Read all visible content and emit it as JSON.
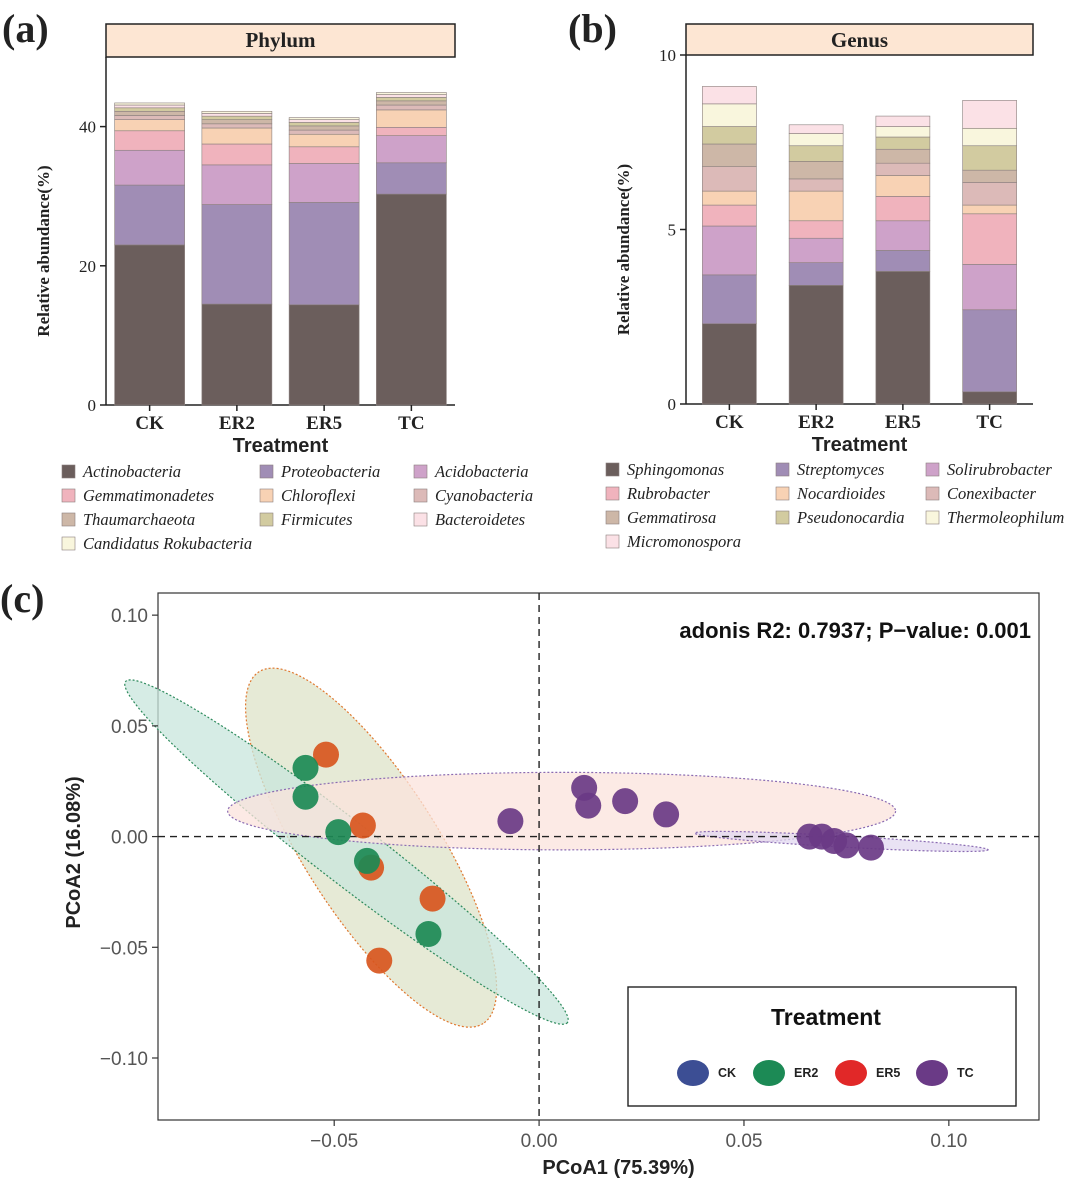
{
  "figure": {
    "panel_labels": [
      "(a)",
      "(b)",
      "(c)"
    ]
  },
  "chart_data": [
    {
      "type": "bar",
      "stacked": true,
      "panel": "(a)",
      "strip_title": "Phylum",
      "xlabel": "Treatment",
      "ylabel": "Relative abundance(%)",
      "categories": [
        "CK",
        "ER2",
        "ER5",
        "TC"
      ],
      "ylim": [
        0,
        50
      ],
      "yticks": [
        0,
        20,
        40
      ],
      "series": [
        {
          "name": "Actinobacteria",
          "color": "#6b5e5c",
          "values": [
            23.0,
            14.5,
            14.4,
            30.3
          ]
        },
        {
          "name": "Proteobacteria",
          "color": "#a08db5",
          "values": [
            8.6,
            14.3,
            14.7,
            4.5
          ]
        },
        {
          "name": "Acidobacteria",
          "color": "#cea2c9",
          "values": [
            5.0,
            5.7,
            5.6,
            3.9
          ]
        },
        {
          "name": "Gemmatimonadetes",
          "color": "#f0b3bd",
          "values": [
            2.8,
            3.0,
            2.4,
            1.2
          ]
        },
        {
          "name": "Chloroflexi",
          "color": "#f8d2b4",
          "values": [
            1.6,
            2.3,
            1.8,
            2.5
          ]
        },
        {
          "name": "Cyanobacteria",
          "color": "#dcbab8",
          "values": [
            0.6,
            0.6,
            0.6,
            0.7
          ]
        },
        {
          "name": "Thaumarchaeota",
          "color": "#cdb7a7",
          "values": [
            0.6,
            0.6,
            0.6,
            0.6
          ]
        },
        {
          "name": "Firmicutes",
          "color": "#d2cba0",
          "values": [
            0.5,
            0.5,
            0.5,
            0.5
          ]
        },
        {
          "name": "Bacteroidetes",
          "color": "#fbe1e6",
          "values": [
            0.4,
            0.4,
            0.4,
            0.4
          ]
        },
        {
          "name": "Candidatus Rokubacteria",
          "color": "#f9f6dd",
          "values": [
            0.3,
            0.3,
            0.3,
            0.3
          ]
        }
      ],
      "legend_order": [
        "Actinobacteria",
        "Proteobacteria",
        "Acidobacteria",
        "Gemmatimonadetes",
        "Chloroflexi",
        "Cyanobacteria",
        "Thaumarchaeota",
        "Firmicutes",
        "Bacteroidetes",
        "Candidatus Rokubacteria"
      ],
      "legend_position": "bottom"
    },
    {
      "type": "bar",
      "stacked": true,
      "panel": "(b)",
      "strip_title": "Genus",
      "xlabel": "Treatment",
      "ylabel": "Relative abundance(%)",
      "categories": [
        "CK",
        "ER2",
        "ER5",
        "TC"
      ],
      "ylim": [
        0,
        10
      ],
      "yticks": [
        0,
        5,
        10
      ],
      "series": [
        {
          "name": "Sphingomonas",
          "color": "#6b5e5c",
          "values": [
            2.3,
            3.4,
            3.8,
            0.35
          ]
        },
        {
          "name": "Streptomyces",
          "color": "#a08db5",
          "values": [
            1.4,
            0.65,
            0.6,
            2.35
          ]
        },
        {
          "name": "Solirubrobacter",
          "color": "#cea2c9",
          "values": [
            1.4,
            0.7,
            0.85,
            1.3
          ]
        },
        {
          "name": "Rubrobacter",
          "color": "#f0b3bd",
          "values": [
            0.6,
            0.5,
            0.7,
            1.45
          ]
        },
        {
          "name": "Nocardioides",
          "color": "#f8d2b4",
          "values": [
            0.4,
            0.85,
            0.6,
            0.25
          ]
        },
        {
          "name": "Conexibacter",
          "color": "#dcbab8",
          "values": [
            0.7,
            0.35,
            0.35,
            0.65
          ]
        },
        {
          "name": "Gemmatirosa",
          "color": "#cdb7a7",
          "values": [
            0.65,
            0.5,
            0.4,
            0.35
          ]
        },
        {
          "name": "Pseudonocardia",
          "color": "#d2cba0",
          "values": [
            0.5,
            0.45,
            0.35,
            0.7
          ]
        },
        {
          "name": "Thermoleophilum",
          "color": "#f9f6dd",
          "values": [
            0.65,
            0.35,
            0.3,
            0.5
          ]
        },
        {
          "name": "Micromonospora",
          "color": "#fbe1e6",
          "values": [
            0.5,
            0.25,
            0.3,
            0.8
          ]
        }
      ],
      "legend_order": [
        "Sphingomonas",
        "Streptomyces",
        "Solirubrobacter",
        "Rubrobacter",
        "Nocardioides",
        "Conexibacter",
        "Gemmatirosa",
        "Pseudonocardia",
        "Thermoleophilum",
        "Micromonospora"
      ],
      "legend_position": "bottom"
    },
    {
      "type": "scatter",
      "panel": "(c)",
      "annotation": "adonis R2: 0.7937; P−value: 0.001",
      "xlabel": "PCoA1 (75.39%)",
      "ylabel": "PCoA2 (16.08%)",
      "xlim": [
        -0.093,
        0.122
      ],
      "ylim": [
        -0.128,
        0.11
      ],
      "xticks": [
        -0.05,
        0.0,
        0.05,
        0.1
      ],
      "xtick_labels": [
        "−0.05",
        "0.00",
        "0.05",
        "0.10"
      ],
      "yticks": [
        -0.1,
        -0.05,
        0.0,
        0.05,
        0.1
      ],
      "ytick_labels": [
        "−0.10",
        "−0.05",
        "0.00",
        "0.05",
        "0.10"
      ],
      "reference_lines": {
        "x": 0,
        "y": 0
      },
      "legend": {
        "title": "Treatment",
        "position": "bottom-right",
        "entries": [
          {
            "label": "CK",
            "color": "#3c4e94"
          },
          {
            "label": "ER2",
            "color": "#1c8a55"
          },
          {
            "label": "ER5",
            "color": "#e12828"
          },
          {
            "label": "TC",
            "color": "#6a3a86"
          }
        ]
      },
      "series": [
        {
          "group": "ER5",
          "color": "#d8561e",
          "points": [
            [
              -0.052,
              0.037
            ],
            [
              -0.043,
              0.005
            ],
            [
              -0.041,
              -0.014
            ],
            [
              -0.026,
              -0.028
            ],
            [
              -0.039,
              -0.056
            ]
          ]
        },
        {
          "group": "ER2",
          "color": "#1c8a55",
          "points": [
            [
              -0.057,
              0.031
            ],
            [
              -0.057,
              0.018
            ],
            [
              -0.049,
              0.002
            ],
            [
              -0.042,
              -0.011
            ],
            [
              -0.027,
              -0.044
            ]
          ]
        },
        {
          "group": "TC-a",
          "color": "#6a3a86",
          "points": [
            [
              -0.007,
              0.007
            ],
            [
              0.011,
              0.022
            ],
            [
              0.012,
              0.014
            ],
            [
              0.021,
              0.016
            ],
            [
              0.031,
              0.01
            ]
          ]
        },
        {
          "group": "TC-b",
          "color": "#6a3a86",
          "points": [
            [
              0.066,
              0.0
            ],
            [
              0.069,
              0.0
            ],
            [
              0.072,
              -0.002
            ],
            [
              0.075,
              -0.004
            ],
            [
              0.081,
              -0.005
            ]
          ]
        }
      ],
      "ellipses": [
        {
          "group": "ER5",
          "cx": -0.041,
          "cy": -0.005,
          "rx": 0.084,
          "ry": 0.017,
          "angle_deg": -71,
          "fill": "#dde3c8",
          "stroke": "#e0782f"
        },
        {
          "group": "ER2",
          "cx": -0.047,
          "cy": -0.007,
          "rx": 0.094,
          "ry": 0.0085,
          "angle_deg": -55,
          "fill": "#c8e6dc",
          "stroke": "#2d8a5c"
        },
        {
          "group": "TC-a",
          "cx": 0.0055,
          "cy": 0.0115,
          "rx": 0.0815,
          "ry": 0.0175,
          "angle_deg": 0,
          "fill": "#fbe3dc",
          "stroke": "#8a6bb2"
        },
        {
          "group": "TC-b",
          "cx": 0.0738,
          "cy": -0.0022,
          "rx": 0.036,
          "ry": 0.0025,
          "angle_deg": -6,
          "fill": "#e2d8f0",
          "stroke": "#8a6bb2"
        }
      ]
    }
  ]
}
